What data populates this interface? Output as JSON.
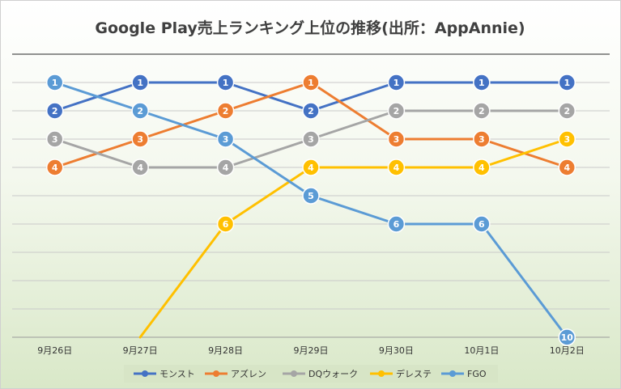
{
  "chart_data": {
    "type": "line",
    "title": "Google Play売上ランキング上位の推移(出所：AppAnnie)",
    "xlabel": "",
    "ylabel": "",
    "categories": [
      "9月26日",
      "9月27日",
      "9月28日",
      "9月29日",
      "9月30日",
      "10月1日",
      "10月2日"
    ],
    "ylim": [
      1,
      10
    ],
    "y_inverted": true,
    "grid": true,
    "legend_position": "bottom",
    "data_labels": true,
    "series": [
      {
        "name": "モンスト",
        "color": "#4472c4",
        "values": [
          2,
          1,
          1,
          2,
          1,
          1,
          1
        ]
      },
      {
        "name": "アズレン",
        "color": "#ed7d31",
        "values": [
          4,
          3,
          2,
          1,
          3,
          3,
          4
        ]
      },
      {
        "name": "DQウォーク",
        "color": "#a5a5a5",
        "values": [
          3,
          4,
          4,
          3,
          2,
          2,
          2
        ]
      },
      {
        "name": "デレステ",
        "color": "#ffc000",
        "values": [
          null,
          null,
          6,
          4,
          4,
          4,
          3
        ]
      },
      {
        "name": "FGO",
        "color": "#5b9bd5",
        "values": [
          1,
          2,
          3,
          5,
          6,
          6,
          10
        ]
      }
    ]
  }
}
